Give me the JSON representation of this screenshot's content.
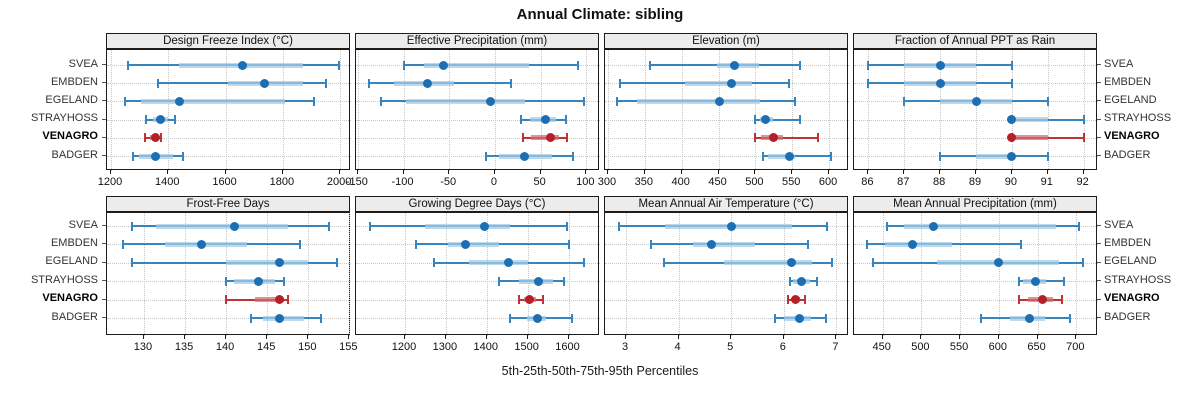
{
  "title": "Annual Climate: sibling",
  "caption": "5th-25th-50th-75th-95th Percentiles",
  "sites": [
    "SVEA",
    "EMBDEN",
    "EGELAND",
    "STRAYHOSS",
    "VENAGRO",
    "BADGER"
  ],
  "highlight_site": "VENAGRO",
  "colors": {
    "blue_line": "#3585c0",
    "blue_band": "#a5cbe6",
    "blue_dot": "#1d6fb3",
    "red_line": "#bf3333",
    "red_band": "#d07070",
    "red_dot": "#b42025",
    "grid": "#c8c8c8",
    "strip_bg": "#ececec",
    "border": "#1c1c1c"
  },
  "chart_data": {
    "type": "scatter",
    "subtype": "trellis-percentile-interval-dotplot",
    "layout_hint": "2 rows x 4 columns, free x scales, site labels on left and right, dotted grid",
    "percentiles": [
      5,
      25,
      50,
      75,
      95
    ],
    "group_rows": [
      "SVEA",
      "EMBDEN",
      "EGELAND",
      "STRAYHOSS",
      "VENAGRO",
      "BADGER"
    ],
    "highlight_row": "VENAGRO",
    "panels": [
      {
        "title": "Design Freeze Index (°C)",
        "xlim": [
          1186,
          2038
        ],
        "ticks": [
          1200,
          1400,
          1600,
          1800,
          2000
        ],
        "values": {
          "SVEA": [
            1260,
            1438,
            1660,
            1872,
            1995
          ],
          "EMBDEN": [
            1365,
            1610,
            1737,
            1869,
            1952
          ],
          "EGELAND": [
            1249,
            1306,
            1438,
            1809,
            1909
          ],
          "STRAYHOSS": [
            1323,
            1346,
            1372,
            1398,
            1423
          ],
          "VENAGRO": [
            1320,
            1335,
            1355,
            1365,
            1375
          ],
          "BADGER": [
            1278,
            1296,
            1356,
            1416,
            1452
          ]
        }
      },
      {
        "title": "Effective Precipitation (mm)",
        "xlim": [
          -152,
          115
        ],
        "ticks": [
          -150,
          -100,
          -50,
          0,
          50,
          100
        ],
        "values": {
          "SVEA": [
            -99,
            -78,
            -56,
            37,
            91
          ],
          "EMBDEN": [
            -138,
            -110,
            -74,
            -45,
            18
          ],
          "EGELAND": [
            -125,
            -97,
            -5,
            33,
            98
          ],
          "STRAYHOSS": [
            29,
            38,
            55,
            67,
            78
          ],
          "VENAGRO": [
            31,
            40,
            61,
            70,
            79
          ],
          "BADGER": [
            -10,
            5,
            32,
            63,
            85
          ]
        }
      },
      {
        "title": "Elevation (m)",
        "xlim": [
          296,
          627
        ],
        "ticks": [
          300,
          350,
          400,
          450,
          500,
          550,
          600
        ],
        "values": {
          "SVEA": [
            357,
            448,
            472,
            505,
            561
          ],
          "EMBDEN": [
            317,
            405,
            468,
            495,
            545
          ],
          "EGELAND": [
            312,
            340,
            451,
            506,
            554
          ],
          "STRAYHOSS": [
            500,
            506,
            514,
            524,
            560
          ],
          "VENAGRO": [
            500,
            508,
            524,
            537,
            585
          ],
          "BADGER": [
            510,
            517,
            546,
            554,
            602
          ]
        }
      },
      {
        "title": "Fraction of Annual PPT as Rain",
        "xlim": [
          85.6,
          92.4
        ],
        "ticks": [
          86,
          87,
          88,
          89,
          90,
          91,
          92
        ],
        "values": {
          "SVEA": [
            86,
            87,
            88,
            89,
            90
          ],
          "EMBDEN": [
            86,
            87,
            88,
            89,
            90
          ],
          "EGELAND": [
            87,
            88,
            89,
            90,
            91
          ],
          "STRAYHOSS": [
            90,
            90,
            90,
            91,
            92
          ],
          "VENAGRO": [
            90,
            90,
            90,
            91,
            92
          ],
          "BADGER": [
            88,
            89,
            90,
            90,
            91
          ]
        }
      },
      {
        "title": "Frost-Free Days",
        "xlim": [
          125.5,
          155.2
        ],
        "ticks": [
          130,
          135,
          140,
          145,
          150,
          155
        ],
        "values": {
          "SVEA": [
            128.5,
            131.5,
            141,
            147.5,
            152.5
          ],
          "EMBDEN": [
            127.5,
            132.5,
            137,
            142.5,
            149
          ],
          "EGELAND": [
            128.5,
            140,
            146.5,
            150,
            153.5
          ],
          "STRAYHOSS": [
            140,
            141,
            144,
            146,
            147
          ],
          "VENAGRO": [
            140,
            143.5,
            146.5,
            147,
            147.5
          ],
          "BADGER": [
            143,
            144.5,
            146.5,
            149.5,
            151.5
          ]
        }
      },
      {
        "title": "Growing Degree Days (°C)",
        "xlim": [
          1080,
          1677
        ],
        "ticks": [
          1200,
          1300,
          1400,
          1500,
          1600
        ],
        "values": {
          "SVEA": [
            1115,
            1250,
            1395,
            1457,
            1597
          ],
          "EMBDEN": [
            1228,
            1305,
            1348,
            1429,
            1600
          ],
          "EGELAND": [
            1270,
            1356,
            1452,
            1502,
            1638
          ],
          "STRAYHOSS": [
            1430,
            1480,
            1526,
            1562,
            1588
          ],
          "VENAGRO": [
            1478,
            1490,
            1504,
            1520,
            1537
          ],
          "BADGER": [
            1457,
            1498,
            1524,
            1546,
            1609
          ]
        }
      },
      {
        "title": "Mean Annual Air Temperature (°C)",
        "xlim": [
          2.6,
          7.24
        ],
        "ticks": [
          3,
          4,
          5,
          6,
          7
        ],
        "values": {
          "SVEA": [
            2.86,
            3.75,
            5.0,
            6.15,
            6.82
          ],
          "EMBDEN": [
            3.48,
            4.28,
            4.63,
            5.46,
            6.46
          ],
          "EGELAND": [
            3.73,
            4.87,
            6.15,
            6.53,
            6.91
          ],
          "STRAYHOSS": [
            6.12,
            6.18,
            6.34,
            6.49,
            6.64
          ],
          "VENAGRO": [
            6.08,
            6.15,
            6.23,
            6.31,
            6.41
          ],
          "BADGER": [
            5.84,
            6.0,
            6.29,
            6.52,
            6.81
          ]
        }
      },
      {
        "title": "Mean Annual Precipitation (mm)",
        "xlim": [
          413,
          728
        ],
        "ticks": [
          450,
          500,
          550,
          600,
          650,
          700
        ],
        "values": {
          "SVEA": [
            455,
            478,
            516,
            674,
            704
          ],
          "EMBDEN": [
            430,
            453,
            488,
            540,
            628
          ],
          "EGELAND": [
            437,
            520,
            600,
            678,
            709
          ],
          "STRAYHOSS": [
            626,
            631,
            647,
            661,
            684
          ],
          "VENAGRO": [
            626,
            637,
            656,
            670,
            682
          ],
          "BADGER": [
            577,
            614,
            640,
            660,
            692
          ]
        }
      }
    ]
  }
}
